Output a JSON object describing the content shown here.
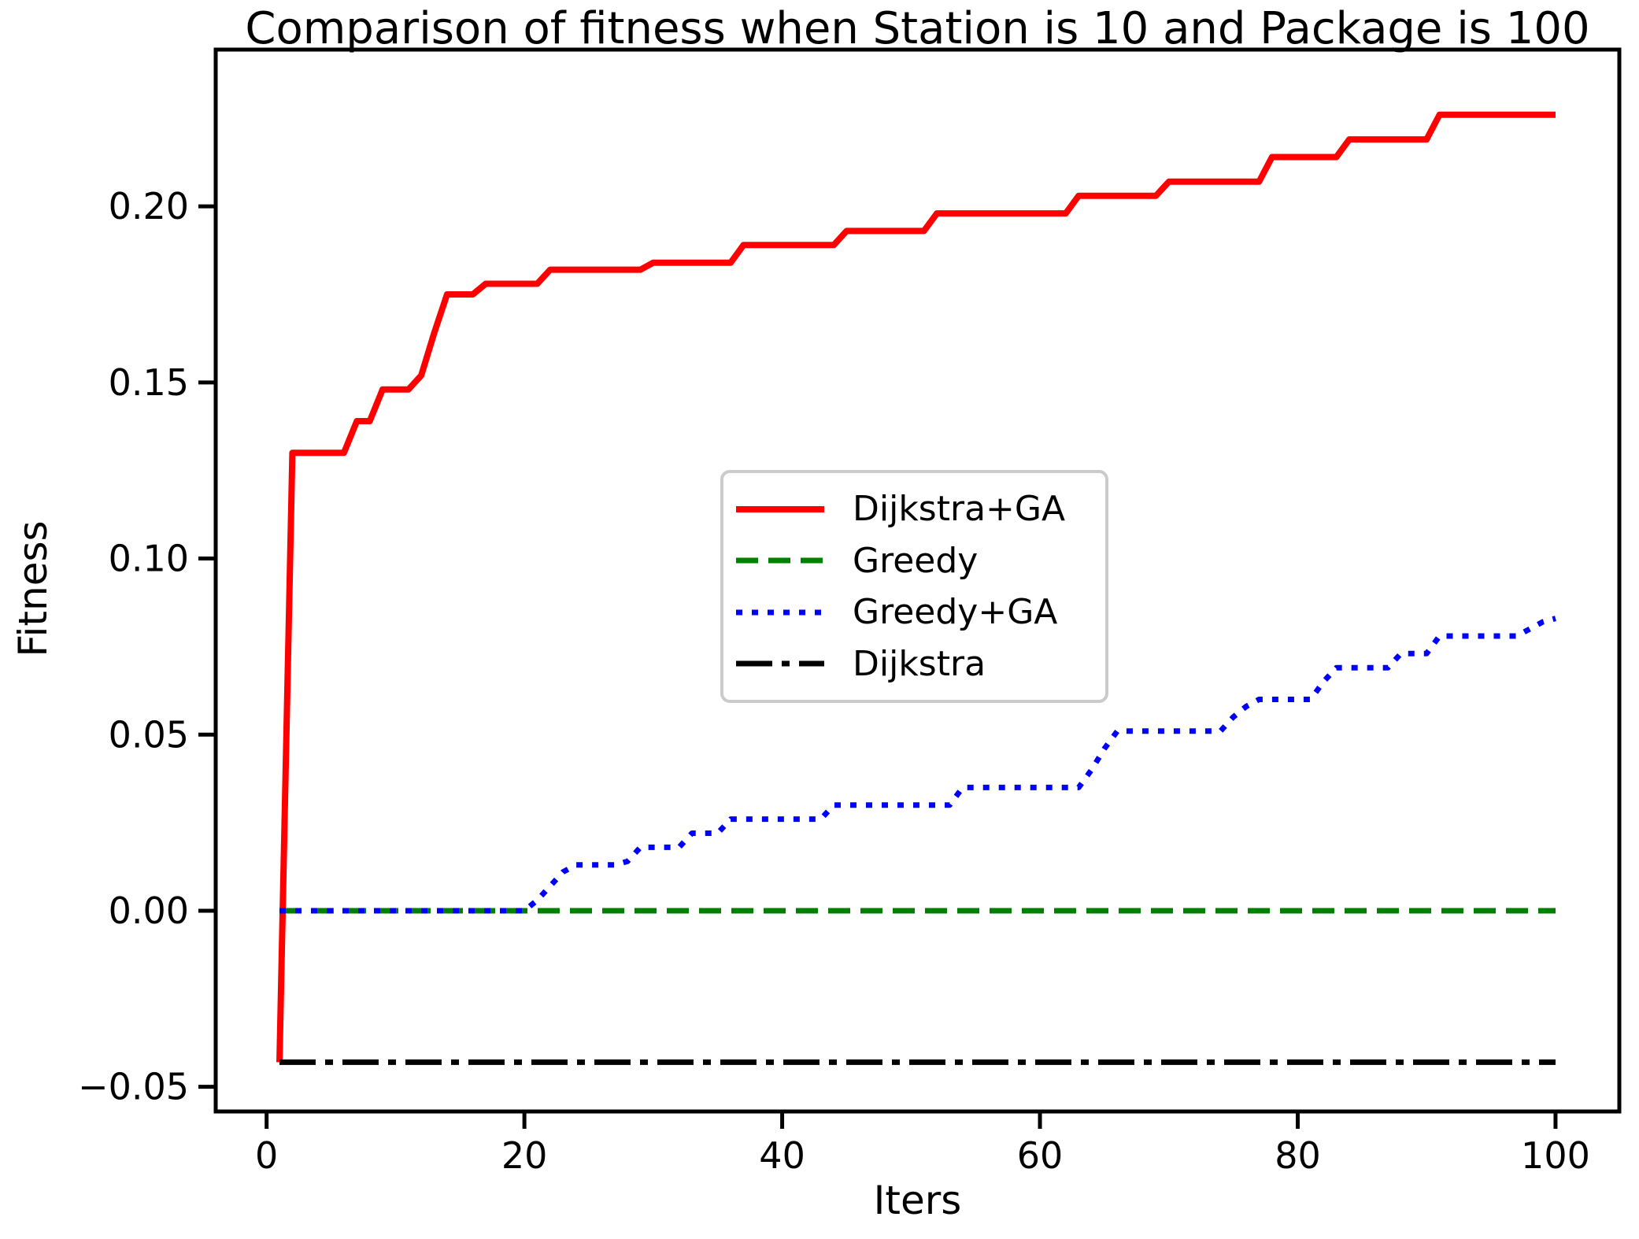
{
  "chart_data": {
    "type": "line",
    "title": "Comparison of fitness when Station is 10 and Package is 100",
    "xlabel": "Iters",
    "ylabel": "Fitness",
    "xlim": [
      -3.95,
      104.95
    ],
    "ylim": [
      -0.057,
      0.2445
    ],
    "x_ticks": [
      0,
      20,
      40,
      60,
      80,
      100
    ],
    "x_tick_labels": [
      "0",
      "20",
      "40",
      "60",
      "80",
      "100"
    ],
    "y_ticks": [
      -0.05,
      0.0,
      0.05,
      0.1,
      0.15,
      0.2
    ],
    "y_tick_labels": [
      "−0.05",
      "0.00",
      "0.05",
      "0.10",
      "0.15",
      "0.20"
    ],
    "grid": false,
    "legend_position": "center",
    "x_start": 1,
    "series": [
      {
        "name": "Dijkstra+GA",
        "color": "#ff0000",
        "linestyle": "solid",
        "linewidth": 8,
        "values": [
          -0.043,
          0.13,
          0.13,
          0.13,
          0.13,
          0.13,
          0.139,
          0.139,
          0.148,
          0.148,
          0.148,
          0.152,
          0.164,
          0.175,
          0.175,
          0.175,
          0.178,
          0.178,
          0.178,
          0.178,
          0.178,
          0.182,
          0.182,
          0.182,
          0.182,
          0.182,
          0.182,
          0.182,
          0.182,
          0.184,
          0.184,
          0.184,
          0.184,
          0.184,
          0.184,
          0.184,
          0.189,
          0.189,
          0.189,
          0.189,
          0.189,
          0.189,
          0.189,
          0.189,
          0.193,
          0.193,
          0.193,
          0.193,
          0.193,
          0.193,
          0.193,
          0.198,
          0.198,
          0.198,
          0.198,
          0.198,
          0.198,
          0.198,
          0.198,
          0.198,
          0.198,
          0.198,
          0.203,
          0.203,
          0.203,
          0.203,
          0.203,
          0.203,
          0.203,
          0.207,
          0.207,
          0.207,
          0.207,
          0.207,
          0.207,
          0.207,
          0.207,
          0.214,
          0.214,
          0.214,
          0.214,
          0.214,
          0.214,
          0.219,
          0.219,
          0.219,
          0.219,
          0.219,
          0.219,
          0.219,
          0.226,
          0.226,
          0.226,
          0.226,
          0.226,
          0.226,
          0.226,
          0.226,
          0.226,
          0.226
        ]
      },
      {
        "name": "Greedy",
        "color": "#008000",
        "linestyle": "dashed",
        "linewidth": 7,
        "constant_value": 0.0,
        "x_range": [
          1,
          100
        ]
      },
      {
        "name": "Greedy+GA",
        "color": "#0000ff",
        "linestyle": "dotted",
        "linewidth": 7,
        "values": [
          0.0,
          0.0,
          0.0,
          0.0,
          0.0,
          0.0,
          0.0,
          0.0,
          0.0,
          0.0,
          0.0,
          0.0,
          0.0,
          0.0,
          0.0,
          0.0,
          0.0,
          0.0,
          0.0,
          0.0,
          0.003,
          0.007,
          0.011,
          0.013,
          0.013,
          0.013,
          0.013,
          0.014,
          0.018,
          0.018,
          0.018,
          0.018,
          0.022,
          0.022,
          0.022,
          0.026,
          0.026,
          0.026,
          0.026,
          0.026,
          0.026,
          0.026,
          0.026,
          0.03,
          0.03,
          0.03,
          0.03,
          0.03,
          0.03,
          0.03,
          0.03,
          0.03,
          0.03,
          0.035,
          0.035,
          0.035,
          0.035,
          0.035,
          0.035,
          0.035,
          0.035,
          0.035,
          0.035,
          0.04,
          0.046,
          0.051,
          0.051,
          0.051,
          0.051,
          0.051,
          0.051,
          0.051,
          0.051,
          0.051,
          0.055,
          0.058,
          0.06,
          0.06,
          0.06,
          0.06,
          0.06,
          0.065,
          0.069,
          0.069,
          0.069,
          0.069,
          0.069,
          0.073,
          0.073,
          0.073,
          0.078,
          0.078,
          0.078,
          0.078,
          0.078,
          0.078,
          0.078,
          0.08,
          0.082,
          0.083
        ]
      },
      {
        "name": "Dijkstra",
        "color": "#000000",
        "linestyle": "dashdot",
        "linewidth": 7,
        "constant_value": -0.043,
        "x_range": [
          1,
          100
        ]
      }
    ]
  }
}
